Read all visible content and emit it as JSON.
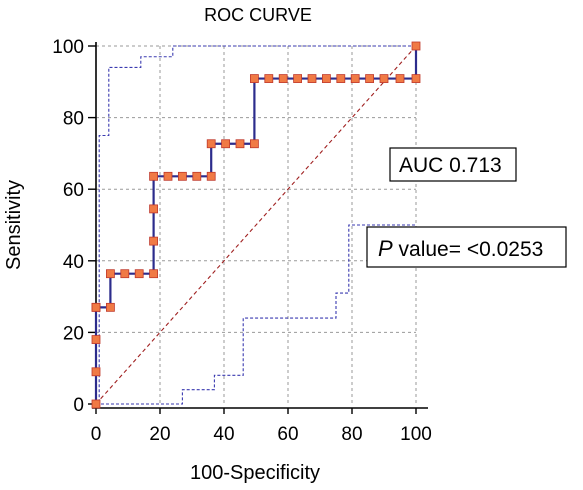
{
  "chart_data": {
    "type": "line",
    "title": "ROC CURVE",
    "xlabel": "100-Specificity",
    "ylabel": "Sensitivity",
    "xlim": [
      0,
      100
    ],
    "ylim": [
      0,
      100
    ],
    "xticks": [
      0,
      20,
      40,
      60,
      80,
      100
    ],
    "yticks": [
      0,
      20,
      40,
      60,
      80,
      100
    ],
    "grid": true,
    "annotations": {
      "auc": "AUC 0.713",
      "p_italic": "P",
      "p_rest": " value= <0.0253"
    },
    "colors": {
      "roc_line": "#2c2c8c",
      "marker_fill": "#f07a45",
      "marker_edge": "#c0392b",
      "ci_line": "#3a3ab0",
      "diagonal": "#a02020",
      "grid": "#9a9a9a"
    },
    "series": [
      {
        "role": "roc",
        "x": [
          0,
          0,
          0,
          0,
          0,
          4.5,
          4.5,
          9,
          13.5,
          18,
          18,
          18,
          18,
          22.5,
          27,
          31.5,
          36,
          36,
          40.5,
          45,
          49.5,
          49.5,
          54,
          58.5,
          63,
          67.5,
          72,
          76.5,
          81,
          85.5,
          90,
          95,
          100,
          100
        ],
        "y": [
          0,
          9,
          18,
          27,
          27,
          27,
          36.4,
          36.4,
          36.4,
          36.4,
          45.5,
          54.5,
          63.6,
          63.6,
          63.6,
          63.6,
          63.6,
          72.7,
          72.7,
          72.7,
          72.7,
          90.9,
          90.9,
          90.9,
          90.9,
          90.9,
          90.9,
          90.9,
          90.9,
          90.9,
          90.9,
          90.9,
          90.9,
          100
        ]
      },
      {
        "role": "ci-upper",
        "x": [
          0,
          1,
          1,
          4,
          4,
          14,
          14,
          24,
          24,
          100
        ],
        "y": [
          0,
          0,
          75,
          75,
          94,
          94,
          97,
          97,
          100,
          100
        ]
      },
      {
        "role": "ci-lower",
        "x": [
          0,
          27,
          27,
          37,
          37,
          46,
          46,
          75,
          75,
          79,
          79,
          100
        ],
        "y": [
          0,
          0,
          4,
          4,
          8,
          8,
          24,
          24,
          31,
          31,
          50,
          50
        ]
      },
      {
        "role": "diagonal",
        "x": [
          0,
          100
        ],
        "y": [
          0,
          100
        ]
      }
    ]
  }
}
